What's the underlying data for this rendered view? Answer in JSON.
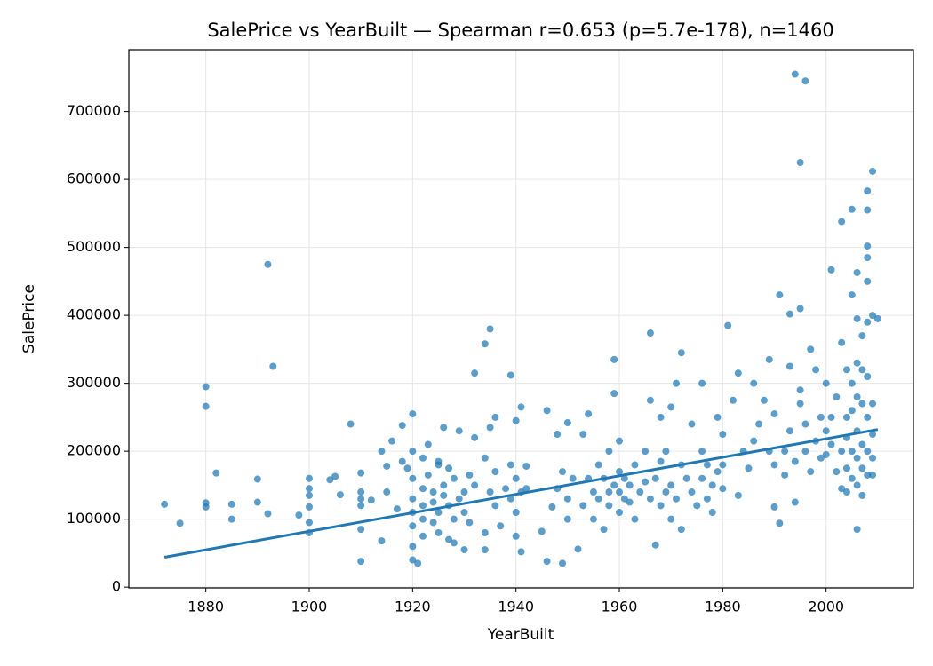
{
  "chart_data": {
    "type": "scatter",
    "title": "SalePrice vs YearBuilt — Spearman r=0.653 (p=5.7e-178), n=1460",
    "x_label": "YearBuilt",
    "y_label": "SalePrice",
    "xlim": [
      1865.1,
      2016.9
    ],
    "ylim": [
      -1100,
      791000
    ],
    "xticks": [
      1880,
      1900,
      1920,
      1940,
      1960,
      1980,
      2000
    ],
    "yticks": [
      0,
      100000,
      200000,
      300000,
      400000,
      500000,
      600000,
      700000
    ],
    "grid": true,
    "series": [
      {
        "type": "scatter",
        "color": "#1f77b4",
        "x": [
          1872,
          1875,
          1880,
          1880,
          1880,
          1880,
          1882,
          1885,
          1885,
          1890,
          1890,
          1892,
          1893,
          1892,
          1898,
          1900,
          1900,
          1900,
          1900,
          1900,
          1900,
          1904,
          1905,
          1906,
          1908,
          1910,
          1910,
          1910,
          1910,
          1910,
          1910,
          1912,
          1914,
          1914,
          1915,
          1915,
          1916,
          1917,
          1918,
          1918,
          1919,
          1920,
          1920,
          1920,
          1920,
          1920,
          1920,
          1920,
          1920,
          1921,
          1934,
          1935,
          1932,
          1939,
          1941,
          1946,
          1959,
          1966,
          1972,
          1981,
          1991,
          1993,
          1995,
          1994,
          1996,
          1995,
          2009,
          2008,
          2008,
          2005,
          2003,
          2008,
          2008,
          2001,
          2006,
          2008,
          2006,
          1991,
          1990,
          1967,
          1946,
          1949,
          1934,
          1941,
          1928,
          1922,
          1922,
          1922,
          1922,
          1922,
          1923,
          1923,
          1924,
          1924,
          1924,
          1925,
          1925,
          1925,
          1925,
          1926,
          1926,
          1926,
          1927,
          1927,
          1927,
          1928,
          1928,
          1929,
          1929,
          1930,
          1930,
          1930,
          1931,
          1931,
          1932,
          1932,
          1934,
          1934,
          1935,
          1935,
          1936,
          1936,
          1936,
          1937,
          1938,
          1939,
          1939,
          1940,
          1940,
          1940,
          1940,
          1941,
          1942,
          1942,
          1945,
          1947,
          1948,
          1948,
          1949,
          1950,
          1950,
          1950,
          1951,
          1952,
          1953,
          1953,
          1954,
          1954,
          1955,
          1955,
          1956,
          1956,
          1957,
          1957,
          1958,
          1958,
          1958,
          1959,
          1959,
          1960,
          1960,
          1960,
          1960,
          1961,
          1961,
          1962,
          1962,
          1963,
          1963,
          1964,
          1965,
          1965,
          1966,
          1966,
          1967,
          1968,
          1968,
          1968,
          1969,
          1969,
          1970,
          1970,
          1970,
          1971,
          1971,
          1972,
          1972,
          1973,
          1974,
          1974,
          1975,
          1976,
          1976,
          1976,
          1977,
          1977,
          1978,
          1978,
          1979,
          1979,
          1980,
          1980,
          1980,
          1982,
          1983,
          1983,
          1984,
          1985,
          1986,
          1986,
          1987,
          1988,
          1989,
          1989,
          1990,
          1990,
          1992,
          1992,
          1993,
          1993,
          1994,
          1994,
          1995,
          1995,
          1996,
          1996,
          1997,
          1997,
          1998,
          1998,
          1999,
          1999,
          2000,
          2000,
          2000,
          2001,
          2001,
          2002,
          2002,
          2003,
          2003,
          2003,
          2004,
          2004,
          2004,
          2004,
          2004,
          2005,
          2005,
          2005,
          2005,
          2005,
          2006,
          2006,
          2006,
          2006,
          2006,
          2006,
          2007,
          2007,
          2007,
          2007,
          2007,
          2007,
          2008,
          2008,
          2008,
          2008,
          2008,
          2009,
          2009,
          2009,
          2009,
          2009,
          2010
        ],
        "values": [
          122000,
          94000,
          295000,
          266000,
          124000,
          118000,
          168000,
          122000,
          100000,
          159000,
          125000,
          475000,
          325000,
          108000,
          106000,
          160000,
          145000,
          135000,
          118000,
          95000,
          80000,
          158000,
          163000,
          136000,
          240000,
          38000,
          168000,
          140000,
          130000,
          120000,
          85000,
          128000,
          200000,
          68000,
          178000,
          140000,
          215000,
          115000,
          238000,
          185000,
          175000,
          255000,
          200000,
          160000,
          130000,
          110000,
          90000,
          60000,
          40000,
          35000,
          358000,
          380000,
          315000,
          312000,
          265000,
          260000,
          335000,
          374000,
          345000,
          385000,
          430000,
          402000,
          410000,
          755000,
          745000,
          625000,
          612000,
          583000,
          555000,
          556000,
          538000,
          502000,
          485000,
          467000,
          463000,
          450000,
          85000,
          94000,
          118000,
          62000,
          38000,
          35000,
          55000,
          52000,
          65000,
          190000,
          145000,
          120000,
          100000,
          75000,
          210000,
          165000,
          140000,
          125000,
          95000,
          185000,
          180000,
          110000,
          80000,
          235000,
          135000,
          150000,
          175000,
          120000,
          70000,
          160000,
          100000,
          230000,
          130000,
          140000,
          110000,
          55000,
          165000,
          95000,
          220000,
          150000,
          190000,
          80000,
          235000,
          140000,
          250000,
          170000,
          120000,
          90000,
          145000,
          180000,
          130000,
          245000,
          160000,
          110000,
          75000,
          140000,
          178000,
          145000,
          82000,
          118000,
          145000,
          225000,
          170000,
          130000,
          100000,
          242000,
          160000,
          56000,
          225000,
          120000,
          255000,
          160000,
          140000,
          100000,
          180000,
          130000,
          160000,
          85000,
          200000,
          140000,
          120000,
          285000,
          150000,
          215000,
          170000,
          140000,
          110000,
          160000,
          130000,
          150000,
          125000,
          180000,
          100000,
          140000,
          200000,
          155000,
          275000,
          130000,
          160000,
          250000,
          185000,
          120000,
          140000,
          200000,
          265000,
          150000,
          100000,
          130000,
          300000,
          180000,
          85000,
          160000,
          240000,
          140000,
          120000,
          300000,
          200000,
          160000,
          180000,
          130000,
          150000,
          110000,
          250000,
          170000,
          225000,
          180000,
          145000,
          275000,
          315000,
          135000,
          200000,
          175000,
          300000,
          215000,
          240000,
          275000,
          335000,
          200000,
          255000,
          180000,
          200000,
          165000,
          325000,
          230000,
          125000,
          185000,
          290000,
          270000,
          240000,
          200000,
          350000,
          170000,
          215000,
          320000,
          250000,
          190000,
          300000,
          230000,
          195000,
          250000,
          210000,
          280000,
          170000,
          360000,
          200000,
          145000,
          320000,
          250000,
          220000,
          175000,
          140000,
          430000,
          300000,
          260000,
          200000,
          160000,
          395000,
          330000,
          280000,
          230000,
          190000,
          150000,
          370000,
          320000,
          270000,
          210000,
          175000,
          135000,
          390000,
          310000,
          250000,
          200000,
          165000,
          400000,
          270000,
          225000,
          190000,
          165000,
          395000
        ]
      },
      {
        "type": "line",
        "color": "#1f77b4",
        "x": [
          1872,
          2010
        ],
        "values": [
          44000,
          232000
        ]
      }
    ]
  }
}
